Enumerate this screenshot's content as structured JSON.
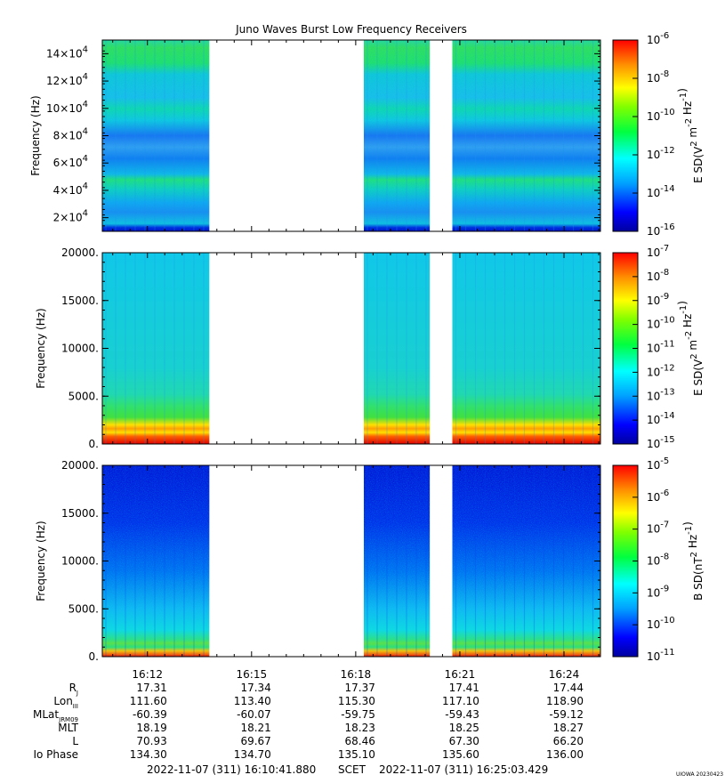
{
  "title": "Juno Waves Burst Low Frequency Receivers",
  "credit": "UIOWA 20230423",
  "time_labels": [
    "16:12",
    "16:15",
    "16:18",
    "16:21",
    "16:24"
  ],
  "ephemeris": {
    "labels": [
      "R_J",
      "Lon_III",
      "MLat_JRM09",
      "MLT",
      "L",
      "Io Phase"
    ],
    "label_main": [
      "R",
      "Lon",
      "MLat",
      "MLT",
      "L",
      "Io Phase"
    ],
    "label_sub": [
      "J",
      "III",
      "JRM09",
      "",
      "",
      ""
    ],
    "rows": [
      [
        "17.31",
        "17.34",
        "17.37",
        "17.41",
        "17.44"
      ],
      [
        "111.60",
        "113.40",
        "115.30",
        "117.10",
        "118.90"
      ],
      [
        "-60.39",
        "-60.07",
        "-59.75",
        "-59.43",
        "-59.12"
      ],
      [
        "18.19",
        "18.21",
        "18.23",
        "18.25",
        "18.27"
      ],
      [
        "70.93",
        "69.67",
        "68.46",
        "67.30",
        "66.20"
      ],
      [
        "134.30",
        "134.70",
        "135.10",
        "135.60",
        "136.00"
      ]
    ]
  },
  "footer": {
    "start": "2022-11-07 (311) 16:10:41.880",
    "mid": "SCET",
    "end": "2022-11-07 (311) 16:25:03.429"
  },
  "chart_data": [
    {
      "type": "heatmap",
      "title": "Juno Waves Burst Low Frequency Receivers",
      "ylabel": "Frequency (Hz)",
      "ylim": [
        10000,
        150000
      ],
      "yticks": [
        {
          "value": 20000,
          "mant": "2",
          "exp": "4"
        },
        {
          "value": 40000,
          "mant": "4",
          "exp": "4"
        },
        {
          "value": 60000,
          "mant": "6",
          "exp": "4"
        },
        {
          "value": 80000,
          "mant": "8",
          "exp": "4"
        },
        {
          "value": 100000,
          "mant": "10",
          "exp": "4"
        },
        {
          "value": 120000,
          "mant": "12",
          "exp": "4"
        },
        {
          "value": 140000,
          "mant": "14",
          "exp": "4"
        }
      ],
      "colorbar": {
        "label_main": "E SD(V",
        "label": "E SD(V2 m-2 Hz-1)",
        "scale": "log",
        "ticks": [
          {
            "mant": "10",
            "exp": "-6"
          },
          {
            "mant": "10",
            "exp": "-8"
          },
          {
            "mant": "10",
            "exp": "-10"
          },
          {
            "mant": "10",
            "exp": "-12"
          },
          {
            "mant": "10",
            "exp": "-14"
          },
          {
            "mant": "10",
            "exp": "-16"
          }
        ]
      },
      "data_intervals": [
        "16:10:42-16:13:00",
        "16:17:30-16:20:35",
        "16:21:35-16:25:03"
      ],
      "dominant_levels": "1e-13 to 1e-12 with green bands near 1.3e5, 9e4, 4.5e4 Hz"
    },
    {
      "type": "heatmap",
      "ylabel": "Frequency (Hz)",
      "ylim": [
        0,
        20000
      ],
      "yticks": [
        {
          "value": 0,
          "label": "0."
        },
        {
          "value": 5000,
          "label": "5000."
        },
        {
          "value": 10000,
          "label": "10000."
        },
        {
          "value": 15000,
          "label": "15000."
        },
        {
          "value": 20000,
          "label": "20000."
        }
      ],
      "colorbar": {
        "label_main": "E SD(V",
        "label": "E SD(V2 m-2 Hz-1)",
        "scale": "log",
        "ticks": [
          {
            "mant": "10",
            "exp": "-7"
          },
          {
            "mant": "10",
            "exp": "-8"
          },
          {
            "mant": "10",
            "exp": "-9"
          },
          {
            "mant": "10",
            "exp": "-10"
          },
          {
            "mant": "10",
            "exp": "-11"
          },
          {
            "mant": "10",
            "exp": "-12"
          },
          {
            "mant": "10",
            "exp": "-13"
          },
          {
            "mant": "10",
            "exp": "-14"
          },
          {
            "mant": "10",
            "exp": "-15"
          }
        ]
      },
      "data_intervals": [
        "16:10:42-16:13:00",
        "16:17:30-16:20:35",
        "16:21:35-16:25:03"
      ],
      "dominant_levels": "red/yellow below ~1500 Hz, cyan above"
    },
    {
      "type": "heatmap",
      "ylabel": "Frequency (Hz)",
      "ylim": [
        0,
        20000
      ],
      "yticks": [
        {
          "value": 0,
          "label": "0."
        },
        {
          "value": 5000,
          "label": "5000."
        },
        {
          "value": 10000,
          "label": "10000."
        },
        {
          "value": 15000,
          "label": "15000."
        },
        {
          "value": 20000,
          "label": "20000."
        }
      ],
      "colorbar": {
        "label_main": "B SD(nT",
        "label": "B SD(nT2 Hz-1)",
        "scale": "log",
        "ticks": [
          {
            "mant": "10",
            "exp": "-5"
          },
          {
            "mant": "10",
            "exp": "-6"
          },
          {
            "mant": "10",
            "exp": "-7"
          },
          {
            "mant": "10",
            "exp": "-8"
          },
          {
            "mant": "10",
            "exp": "-9"
          },
          {
            "mant": "10",
            "exp": "-10"
          },
          {
            "mant": "10",
            "exp": "-11"
          }
        ]
      },
      "data_intervals": [
        "16:10:42-16:13:00",
        "16:17:30-16:20:35",
        "16:21:35-16:25:03"
      ],
      "dominant_levels": "blue above ~8000 Hz, cyan/green toward low frequency, orange below ~500 Hz"
    }
  ]
}
